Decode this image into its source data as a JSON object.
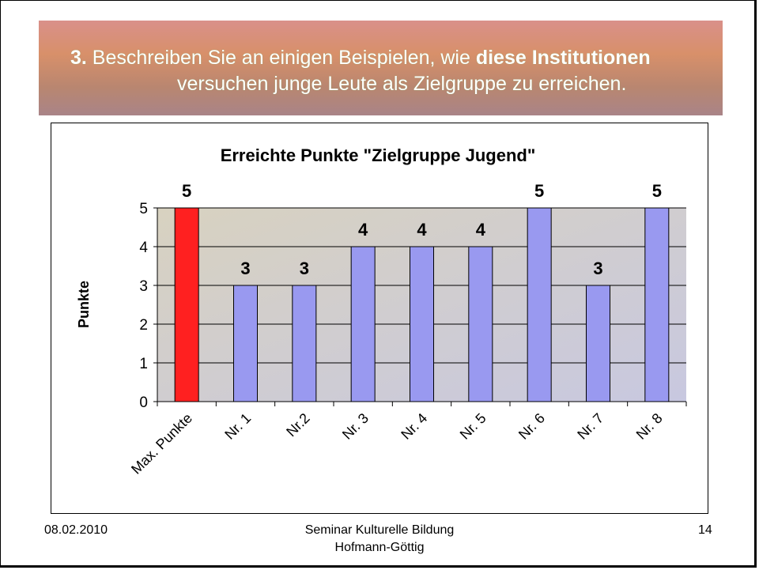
{
  "banner": {
    "number": "3.",
    "text_before": " Beschreiben Sie an einigen Beispielen, wie ",
    "text_bold": "diese Institutionen",
    "line2": "versuchen junge Leute als Zielgruppe zu erreichen."
  },
  "chart_data": {
    "type": "bar",
    "title": "Erreichte Punkte \"Zielgruppe Jugend\"",
    "xlabel": "",
    "ylabel": "Punkte",
    "ylim": [
      0,
      5
    ],
    "yticks": [
      "0",
      "1",
      "2",
      "3",
      "4",
      "5"
    ],
    "categories": [
      "Max. Punkte",
      "Nr. 1",
      "Nr.2",
      "Nr. 3",
      "Nr. 4",
      "Nr. 5",
      "Nr. 6",
      "Nr. 7",
      "Nr. 8"
    ],
    "values": [
      5,
      3,
      3,
      4,
      4,
      4,
      5,
      3,
      5
    ],
    "colors": [
      "#ff2020",
      "#9999f0",
      "#9999f0",
      "#9999f0",
      "#9999f0",
      "#9999f0",
      "#9999f0",
      "#9999f0",
      "#9999f0"
    ],
    "grid": true,
    "legend": "none"
  },
  "footer": {
    "date": "08.02.2010",
    "center1": "Seminar Kulturelle Bildung",
    "center2": "Hofmann-Göttig",
    "page": "14"
  }
}
